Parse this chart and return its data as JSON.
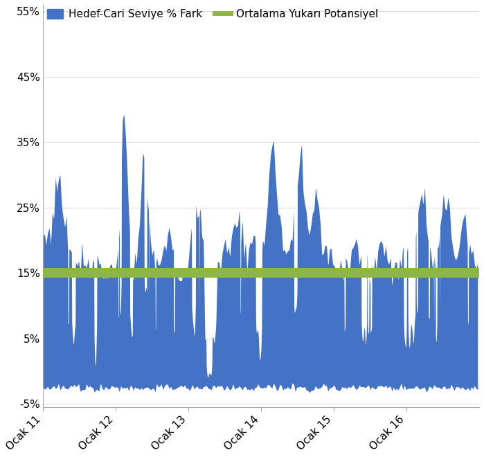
{
  "legend_bar": "Hedef-Cari Seviye % Fark",
  "legend_line": "Ortalama Yukarı Potansiyel",
  "bar_color": "#4472C4",
  "line_color": "#8DB645",
  "line_value": 0.15,
  "line_width": 10,
  "ylim": [
    -0.055,
    0.56
  ],
  "yticks": [
    -0.05,
    0.05,
    0.15,
    0.25,
    0.35,
    0.45,
    0.55
  ],
  "ytick_labels": [
    "-5%",
    "5%",
    "15%",
    "25%",
    "35%",
    "45%",
    "55%"
  ],
  "xlabel_labels": [
    "Ocak 11",
    "Ocak 12",
    "Ocak 13",
    "Ocak 14",
    "Ocak 15",
    "Ocak 16"
  ],
  "background_color": "#ffffff",
  "grid_color": "#d8d8d8",
  "n_weeks": 280
}
